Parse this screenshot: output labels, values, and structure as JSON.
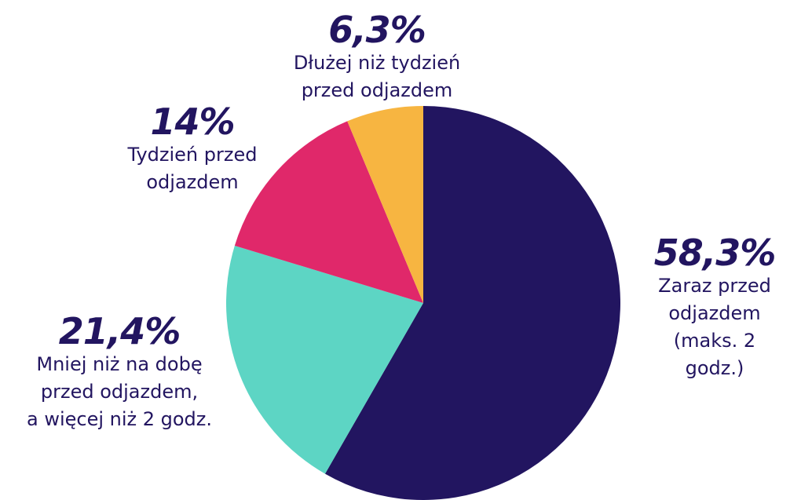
{
  "chart_data": {
    "type": "pie",
    "categories": [
      "Zaraz przed\nodjazdem\n(maks. 2 godz.)",
      "Mniej niż na dobę\nprzed odjazdem,\na więcej niż 2 godz.",
      "Tydzień przed\nodjazdem",
      "Dłużej niż tydzień\nprzed odjazdem"
    ],
    "values": [
      58.3,
      21.4,
      14,
      6.3
    ],
    "value_labels": [
      "58,3%",
      "21,4%",
      "14%",
      "6,3%"
    ],
    "colors": [
      "#221560",
      "#5dd5c4",
      "#e0286a",
      "#f7b541"
    ]
  }
}
